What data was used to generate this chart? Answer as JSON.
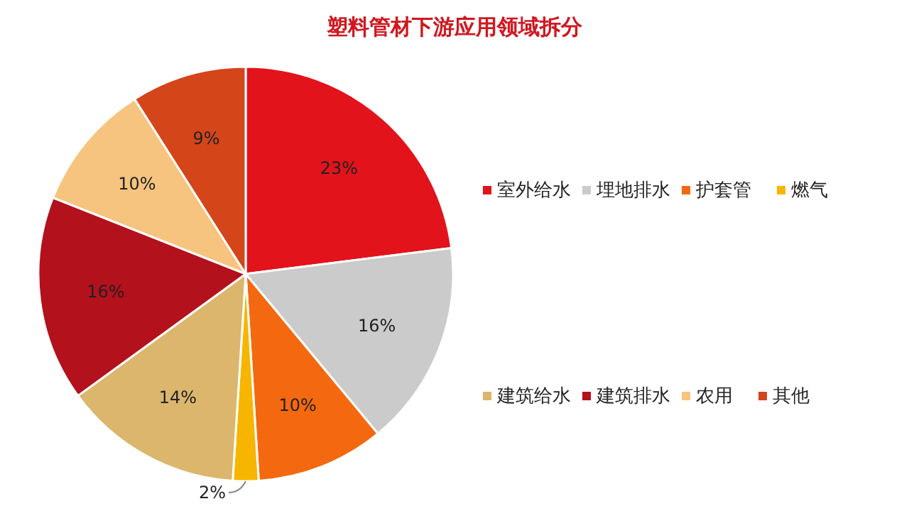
{
  "chart_data": {
    "type": "pie",
    "title": "塑料管材下游应用领域拆分",
    "categories": [
      "室外给水",
      "埋地排水",
      "护套管",
      "燃气",
      "建筑给水",
      "建筑排水",
      "农用",
      "其他"
    ],
    "values": [
      23,
      16,
      10,
      2,
      14,
      16,
      10,
      9
    ],
    "colors": [
      "#e3131b",
      "#cbcbcb",
      "#f4690f",
      "#f7b500",
      "#dbb66c",
      "#b3111c",
      "#f6c47e",
      "#d4451a"
    ],
    "value_labels": [
      "23%",
      "16%",
      "10%",
      "2%",
      "14%",
      "16%",
      "10%",
      "9%"
    ],
    "legend": "right"
  }
}
